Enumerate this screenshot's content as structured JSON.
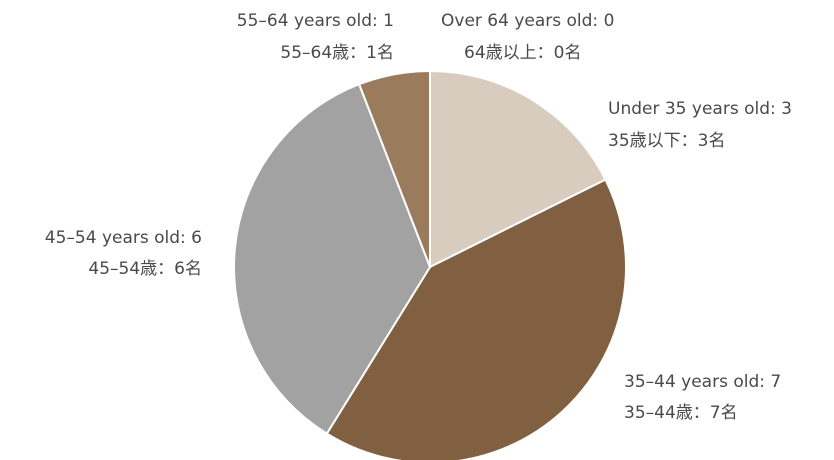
{
  "chart_data": {
    "type": "pie",
    "categories": [
      "Under 35 years old",
      "35–44 years old",
      "45–54 years old",
      "55–64 years old",
      "Over 64 years old"
    ],
    "values": [
      3,
      7,
      6,
      1,
      0
    ],
    "colors": [
      "#d8ccbe",
      "#806040",
      "#a2a2a2",
      "#9a7c5c",
      "#d8ccbe"
    ],
    "labels_en": [
      "Under 35 years old: 3",
      "35–44 years old: 7",
      "45–54 years old: 6",
      "55–64 years old: 1",
      "Over 64 years old: 0"
    ],
    "labels_ja": [
      "35歳以下：3名",
      "35–44歳：7名",
      "45–54歳：6名",
      "55–64歳：1名",
      "64歳以上：0名"
    ],
    "start_angle": "12 o'clock",
    "direction": "clockwise",
    "legend": "none"
  }
}
